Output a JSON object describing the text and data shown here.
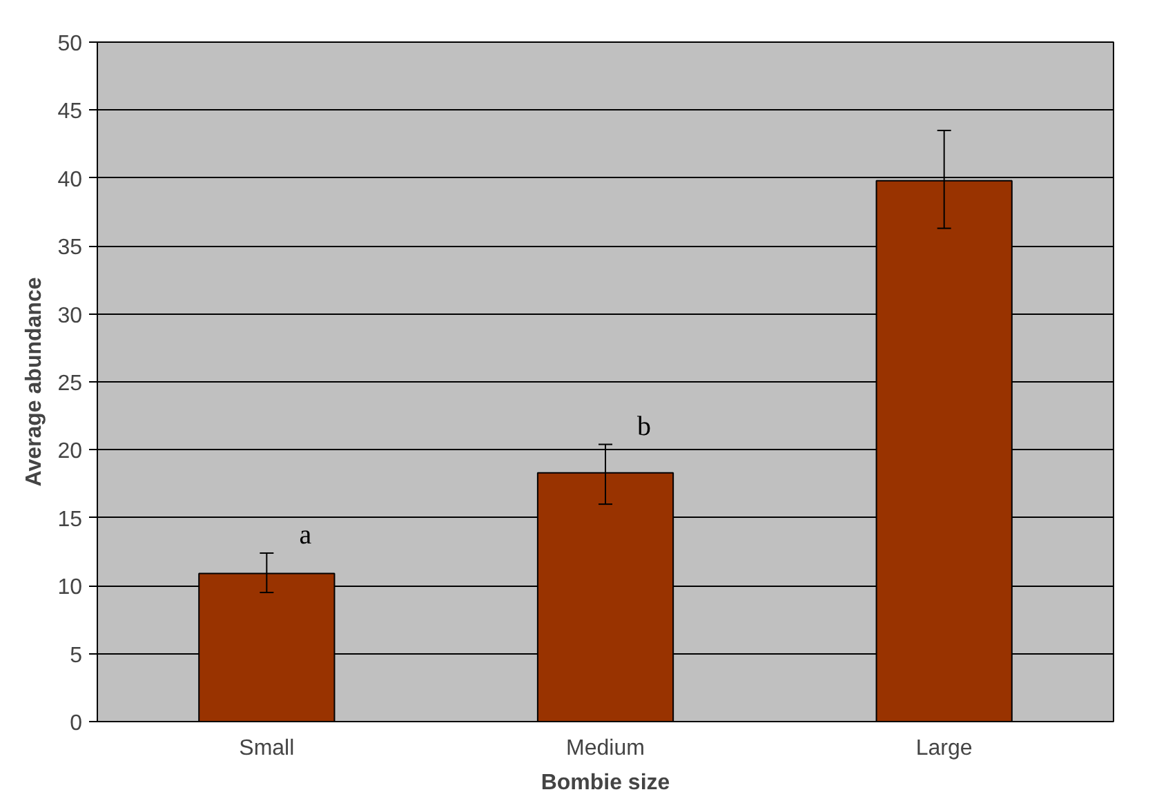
{
  "chart_data": {
    "type": "bar",
    "xlabel": "Bombie size",
    "ylabel": "Average abundance",
    "categories": [
      "Small",
      "Medium",
      "Large"
    ],
    "values": [
      10.9,
      18.3,
      39.8
    ],
    "errors": [
      [
        9.5,
        12.4
      ],
      [
        16.0,
        20.4
      ],
      [
        36.3,
        43.5
      ]
    ],
    "color": "#993300",
    "ylim": [
      0,
      50
    ],
    "yticks": [
      0,
      5,
      10,
      15,
      20,
      25,
      30,
      35,
      40,
      45,
      50
    ],
    "grid": "y",
    "annotations": [
      "a",
      "b"
    ]
  }
}
